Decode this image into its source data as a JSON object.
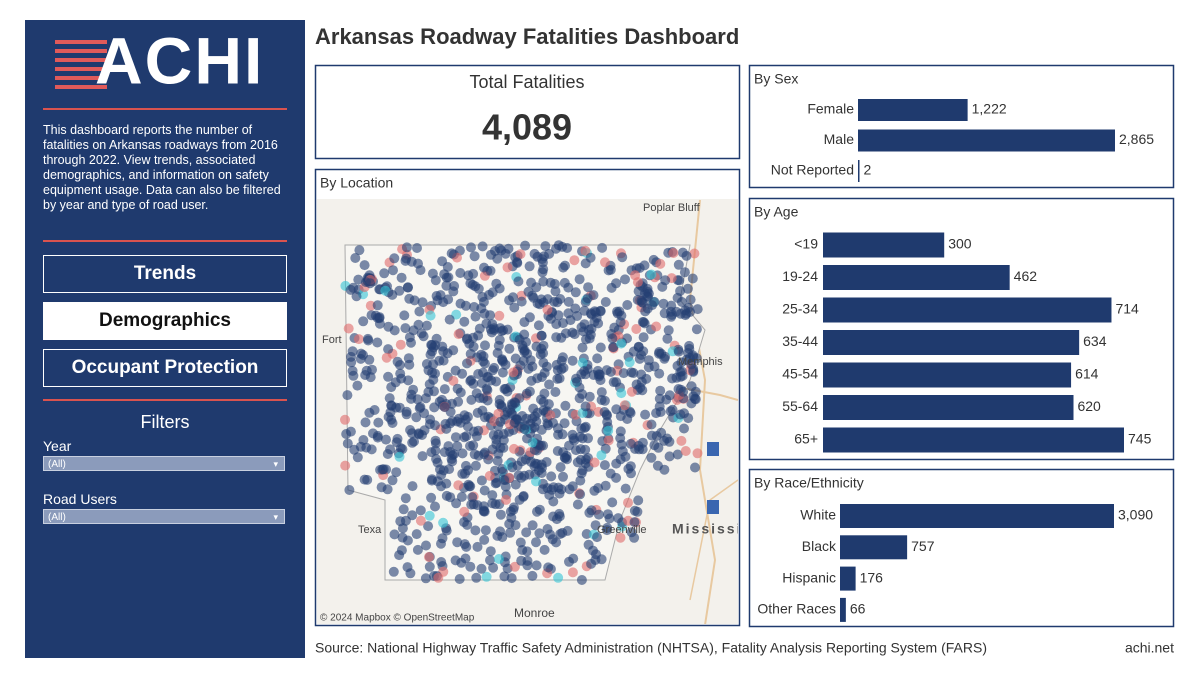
{
  "logo": "ACHI",
  "description": "This dashboard reports the number of fatalities on Arkansas roadways from 2016 through 2022. View trends, associated demographics, and information on safety equipment usage. Data can also be filtered by year and type of road user.",
  "nav": [
    "Trends",
    "Demographics",
    "Occupant Protection"
  ],
  "filters": {
    "title": "Filters",
    "items": [
      {
        "label": "Year",
        "value": "(All)"
      },
      {
        "label": "Road Users",
        "value": "(All)"
      }
    ]
  },
  "title": "Arkansas Roadway Fatalities Dashboard",
  "total": {
    "title": "Total Fatalities",
    "value": "4,089"
  },
  "map": {
    "title": "By Location",
    "labels": [
      "Poplar Bluff",
      "Fort",
      "Memphis",
      "Greenville",
      "Mississi",
      "Texa",
      "Monroe"
    ],
    "credit": "© 2024 Mapbox © OpenStreetMap"
  },
  "chart_data": [
    {
      "type": "bar",
      "orientation": "horizontal",
      "title": "By Sex",
      "color": "#1f3a6e",
      "categories": [
        "Female",
        "Male",
        "Not Reported"
      ],
      "values": [
        1222,
        2865,
        2
      ],
      "value_labels": [
        "1,222",
        "2,865",
        "2"
      ]
    },
    {
      "type": "bar",
      "orientation": "horizontal",
      "title": "By Age",
      "color": "#1f3a6e",
      "categories": [
        "<19",
        "19-24",
        "25-34",
        "35-44",
        "45-54",
        "55-64",
        "65+"
      ],
      "values": [
        300,
        462,
        714,
        634,
        614,
        620,
        745
      ]
    },
    {
      "type": "bar",
      "orientation": "horizontal",
      "title": "By Race/Ethnicity",
      "color": "#1f3a6e",
      "categories": [
        "White",
        "Black",
        "Hispanic",
        "Other Races"
      ],
      "values": [
        3090,
        757,
        176,
        66
      ],
      "value_labels": [
        "3,090",
        "757",
        "176",
        "66"
      ]
    }
  ],
  "footer": {
    "source": "Source: National Highway Traffic Safety Administration (NHTSA), Fatality Analysis Reporting System (FARS)",
    "site": "achi.net"
  }
}
